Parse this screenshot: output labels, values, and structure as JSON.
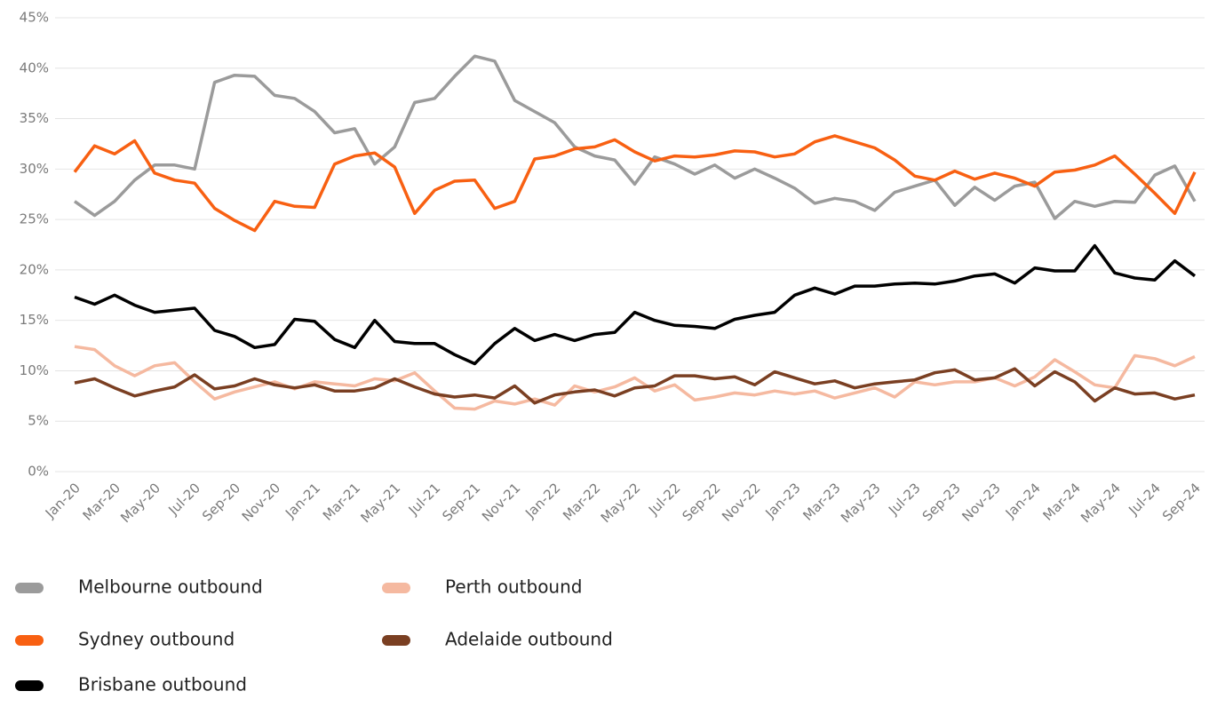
{
  "chart_data": {
    "type": "line",
    "categories": [
      "Jan-20",
      null,
      "Mar-20",
      null,
      "May-20",
      null,
      "Jul-20",
      null,
      "Sep-20",
      null,
      "Nov-20",
      null,
      "Jan-21",
      null,
      "Mar-21",
      null,
      "May-21",
      null,
      "Jul-21",
      null,
      "Sep-21",
      null,
      "Nov-21",
      null,
      "Jan-22",
      null,
      "Mar-22",
      null,
      "May-22",
      null,
      "Jul-22",
      null,
      "Sep-22",
      null,
      "Nov-22",
      null,
      "Jan-23",
      null,
      "Mar-23",
      null,
      "May-23",
      null,
      "Jul-23",
      null,
      "Sep-23",
      null,
      "Nov-23",
      null,
      "Jan-24",
      null,
      "Mar-24",
      null,
      "May-24",
      null,
      "Jul-24",
      null,
      "Sep-24"
    ],
    "ylim": [
      0,
      45
    ],
    "yticks": [
      {
        "value": 0,
        "label": "0%"
      },
      {
        "value": 5,
        "label": "5%"
      },
      {
        "value": 10,
        "label": "10%"
      },
      {
        "value": 15,
        "label": "15%"
      },
      {
        "value": 20,
        "label": "20%"
      },
      {
        "value": 25,
        "label": "25%"
      },
      {
        "value": 30,
        "label": "30%"
      },
      {
        "value": 35,
        "label": "35%"
      },
      {
        "value": 40,
        "label": "40%"
      },
      {
        "value": 45,
        "label": "45%"
      }
    ],
    "grid": true,
    "series": [
      {
        "name": "Melbourne outbound",
        "color": "#9b9b9b",
        "values": [
          26.8,
          25.4,
          26.8,
          28.9,
          30.4,
          30.4,
          30.0,
          38.6,
          39.3,
          39.2,
          37.3,
          37.0,
          35.7,
          33.6,
          34.0,
          30.5,
          32.2,
          36.6,
          37.0,
          39.2,
          41.2,
          40.7,
          36.8,
          35.7,
          34.6,
          32.2,
          31.3,
          30.9,
          28.5,
          31.2,
          30.5,
          29.5,
          30.4,
          29.1,
          30.0,
          29.1,
          28.1,
          26.6,
          27.1,
          26.8,
          25.9,
          27.7,
          28.3,
          28.9,
          26.4,
          28.2,
          26.9,
          28.3,
          28.7,
          25.1,
          26.8,
          26.3,
          26.8,
          26.7,
          29.4,
          30.3,
          26.8
        ]
      },
      {
        "name": "Sydney outbound",
        "color": "#f86012",
        "values": [
          29.7,
          32.3,
          31.5,
          32.8,
          29.6,
          28.9,
          28.6,
          26.1,
          24.9,
          23.9,
          26.8,
          26.3,
          26.2,
          30.5,
          31.3,
          31.6,
          30.2,
          25.6,
          27.9,
          28.8,
          28.9,
          26.1,
          26.8,
          31.0,
          31.3,
          32.0,
          32.2,
          32.9,
          31.7,
          30.8,
          31.3,
          31.2,
          31.4,
          31.8,
          31.7,
          31.2,
          31.5,
          32.7,
          33.3,
          32.7,
          32.1,
          30.9,
          29.3,
          28.9,
          29.8,
          29.0,
          29.6,
          29.1,
          28.3,
          29.7,
          29.9,
          30.4,
          31.3,
          29.5,
          27.6,
          25.6,
          29.7
        ]
      },
      {
        "name": "Brisbane outbound",
        "color": "#000000",
        "values": [
          17.3,
          16.6,
          17.5,
          16.5,
          15.8,
          16.0,
          16.2,
          14.0,
          13.4,
          12.3,
          12.6,
          15.1,
          14.9,
          13.1,
          12.3,
          15.0,
          12.9,
          12.7,
          12.7,
          11.6,
          10.7,
          12.7,
          14.2,
          13.0,
          13.6,
          13.0,
          13.6,
          13.8,
          15.8,
          15.0,
          14.5,
          14.4,
          14.2,
          15.1,
          15.5,
          15.8,
          17.5,
          18.2,
          17.6,
          18.4,
          18.4,
          18.6,
          18.7,
          18.6,
          18.9,
          19.4,
          19.6,
          18.7,
          20.2,
          19.9,
          19.9,
          22.4,
          19.7,
          19.2,
          19.0,
          20.9,
          19.4
        ]
      },
      {
        "name": "Perth outbound",
        "color": "#f5b9a0",
        "values": [
          12.4,
          12.1,
          10.5,
          9.5,
          10.5,
          10.8,
          8.9,
          7.2,
          7.9,
          8.4,
          8.9,
          8.2,
          8.9,
          8.7,
          8.5,
          9.2,
          9.0,
          9.8,
          8.0,
          6.3,
          6.2,
          7.0,
          6.7,
          7.2,
          6.6,
          8.5,
          7.9,
          8.4,
          9.3,
          8.0,
          8.6,
          7.1,
          7.4,
          7.8,
          7.6,
          8.0,
          7.7,
          8.0,
          7.3,
          7.8,
          8.3,
          7.4,
          8.9,
          8.6,
          8.9,
          8.9,
          9.3,
          8.5,
          9.4,
          11.1,
          9.9,
          8.6,
          8.3,
          11.5,
          11.2,
          10.5,
          11.4
        ]
      },
      {
        "name": "Adelaide outbound",
        "color": "#7a3f22",
        "values": [
          8.8,
          9.2,
          8.3,
          7.5,
          8.0,
          8.4,
          9.6,
          8.2,
          8.5,
          9.2,
          8.6,
          8.3,
          8.6,
          8.0,
          8.0,
          8.3,
          9.2,
          8.4,
          7.7,
          7.4,
          7.6,
          7.3,
          8.5,
          6.8,
          7.6,
          7.9,
          8.1,
          7.5,
          8.3,
          8.5,
          9.5,
          9.5,
          9.2,
          9.4,
          8.6,
          9.9,
          9.3,
          8.7,
          9.0,
          8.3,
          8.7,
          8.9,
          9.1,
          9.8,
          10.1,
          9.1,
          9.3,
          10.2,
          8.5,
          9.9,
          8.9,
          7.0,
          8.3,
          7.7,
          7.8,
          7.2,
          7.6
        ]
      }
    ]
  }
}
